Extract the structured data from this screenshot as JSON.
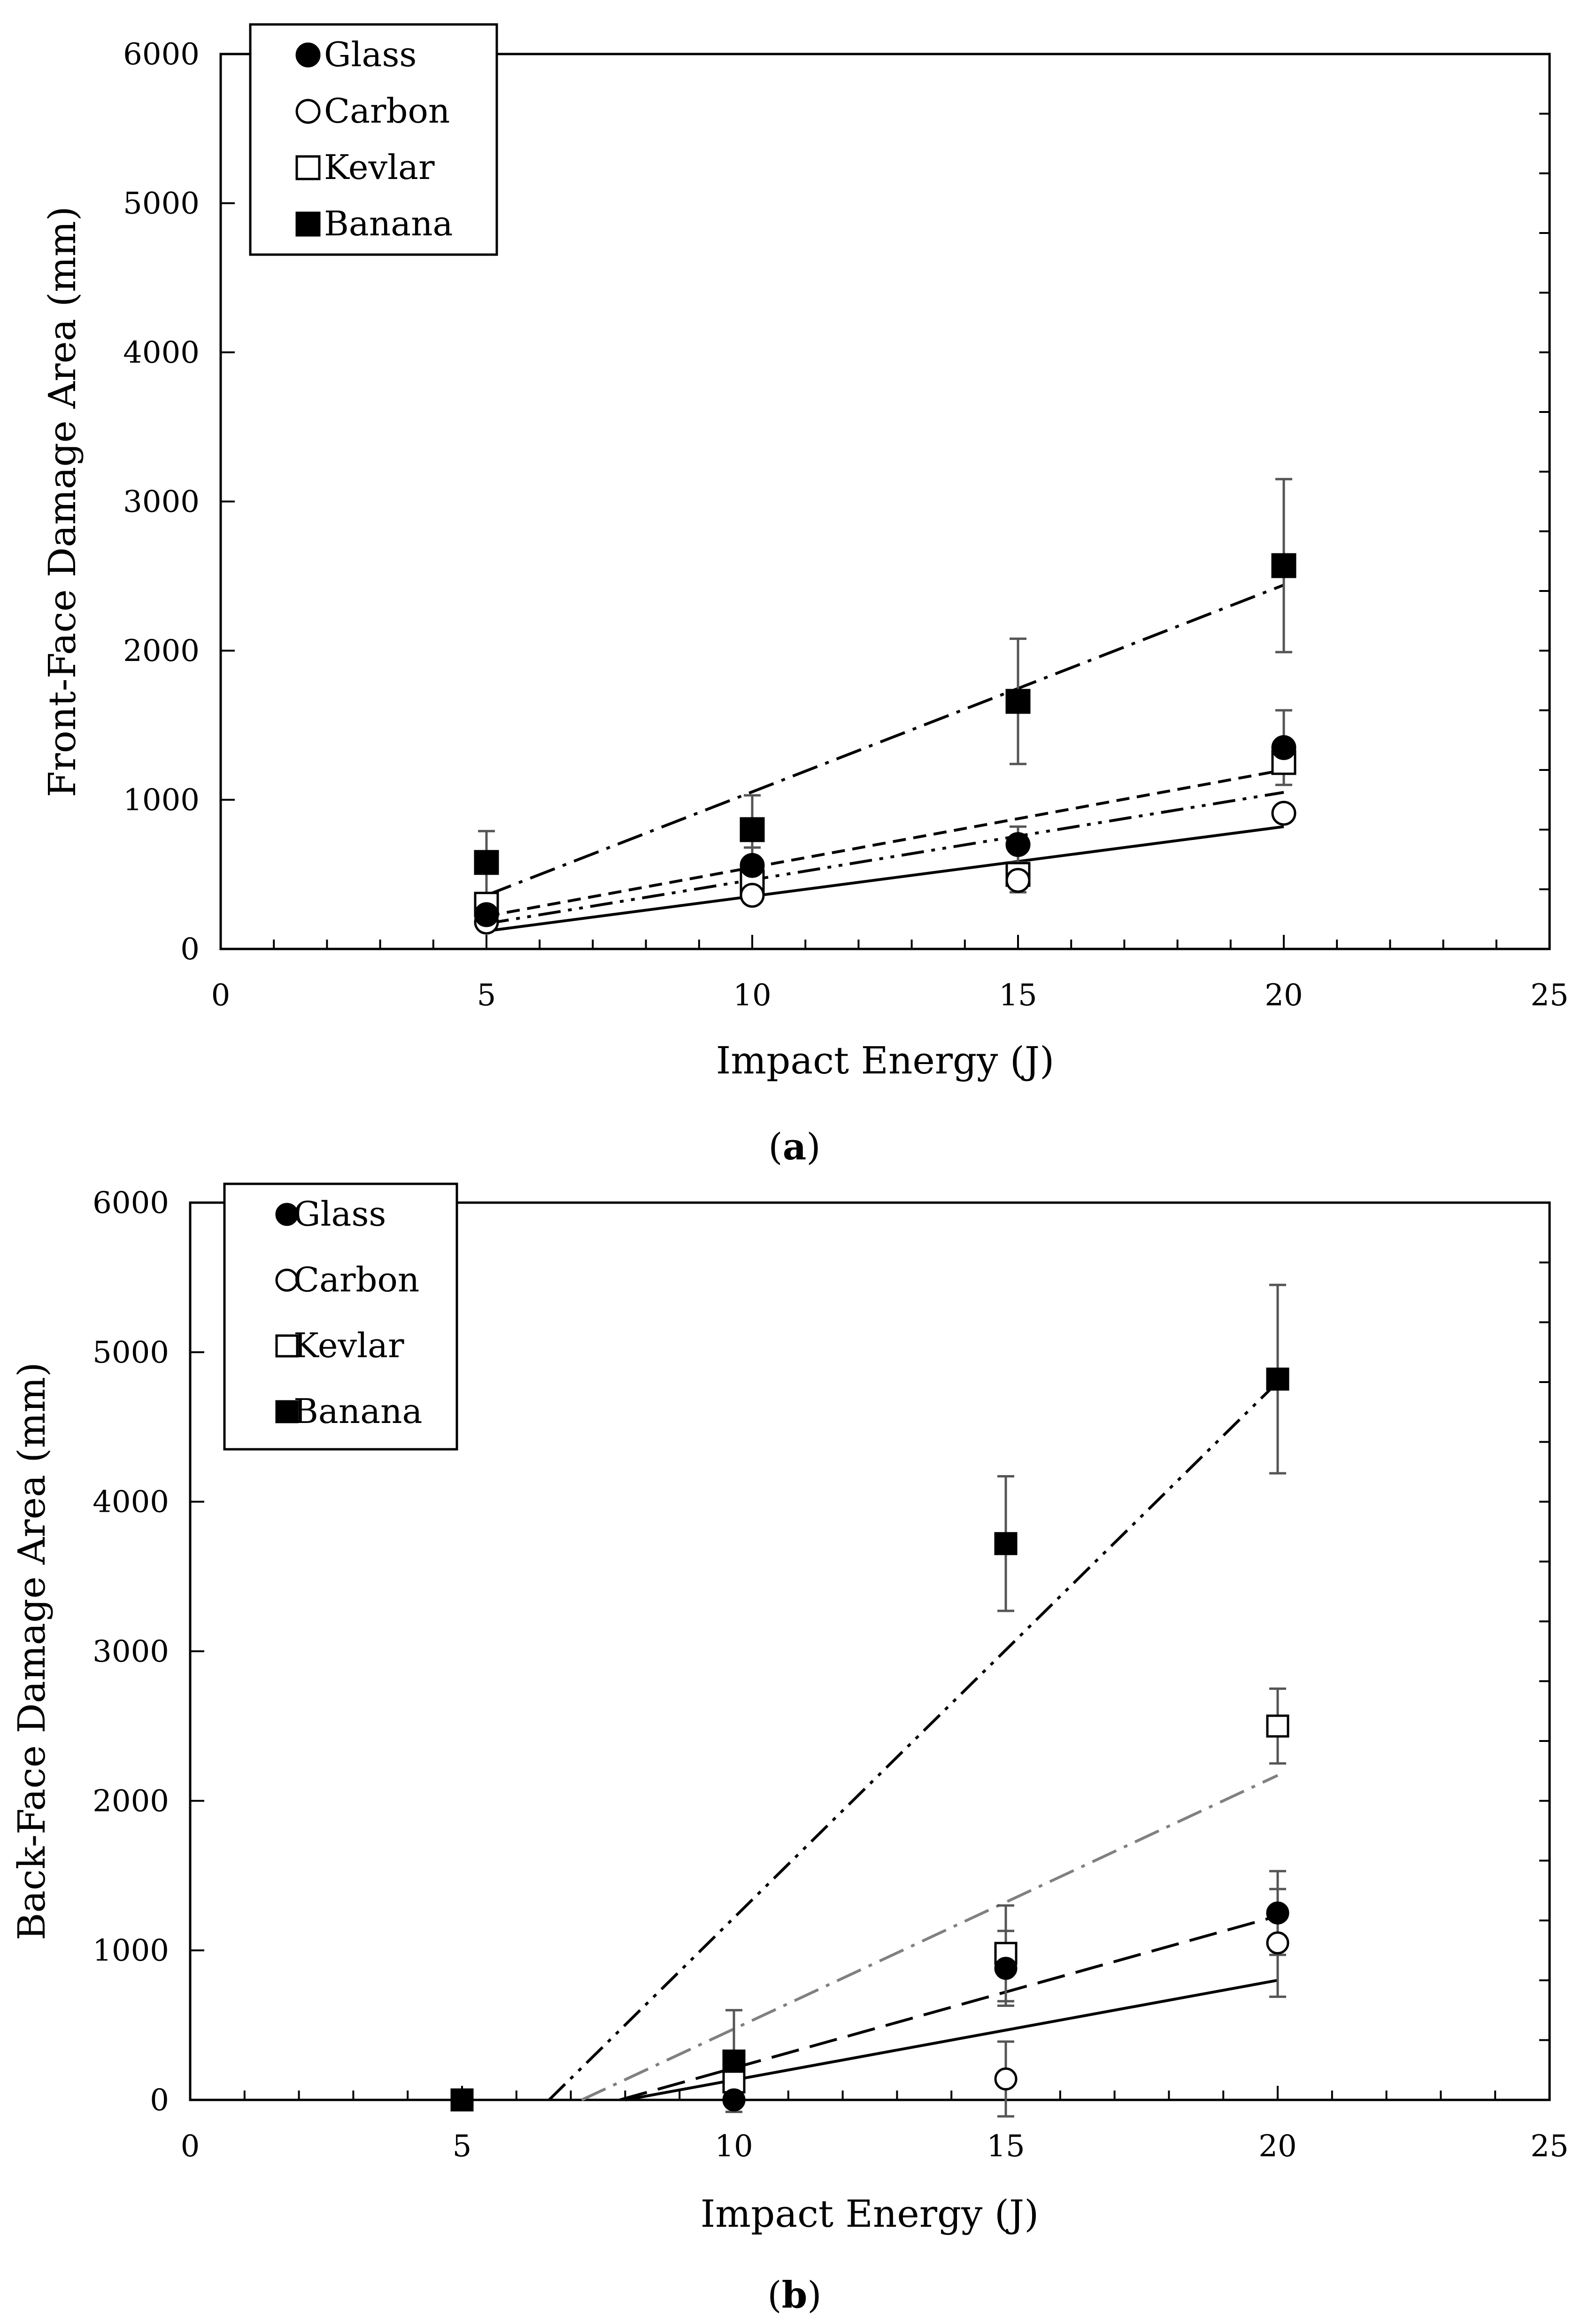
{
  "chart_data": [
    {
      "type": "scatter",
      "caption": "a",
      "xlabel": "Impact Energy (J)",
      "ylabel": "Front-Face Damage Area (mm)",
      "xlim": [
        0,
        25
      ],
      "ylim": [
        0,
        6000
      ],
      "xticks": [
        0,
        5,
        10,
        15,
        20,
        25
      ],
      "yticks": [
        0,
        1000,
        2000,
        3000,
        4000,
        5000,
        6000
      ],
      "x_minor_step": 1,
      "y_minor_step": 400,
      "legend_position": "top-left",
      "series": [
        {
          "name": "Glass",
          "marker": "filled-circle",
          "x": [
            5,
            10,
            15,
            20
          ],
          "y": [
            230,
            560,
            700,
            1350
          ],
          "err": [
            0,
            120,
            120,
            250
          ],
          "trend": {
            "x": [
              5,
              20
            ],
            "y": [
              170,
              1050
            ],
            "dash": "dash-dot-dot",
            "color": "#000000"
          }
        },
        {
          "name": "Carbon",
          "marker": "open-circle",
          "x": [
            5,
            10,
            15,
            20
          ],
          "y": [
            180,
            360,
            460,
            910
          ],
          "err": [
            0,
            0,
            80,
            0
          ],
          "trend": {
            "x": [
              5,
              20
            ],
            "y": [
              120,
              820
            ],
            "dash": "solid",
            "color": "#000000"
          }
        },
        {
          "name": "Kevlar",
          "marker": "open-square",
          "x": [
            5,
            10,
            15,
            20
          ],
          "y": [
            300,
            450,
            500,
            1250
          ],
          "err": [
            0,
            0,
            0,
            0
          ],
          "trend": {
            "x": [
              5,
              20
            ],
            "y": [
              220,
              1200
            ],
            "dash": "dash",
            "color": "#000000"
          }
        },
        {
          "name": "Banana",
          "marker": "filled-square",
          "x": [
            5,
            10,
            15,
            20
          ],
          "y": [
            580,
            800,
            1660,
            2570
          ],
          "err": [
            210,
            230,
            420,
            580
          ],
          "trend": {
            "x": [
              5,
              20
            ],
            "y": [
              360,
              2440
            ],
            "dash": "dash-dot",
            "color": "#000000"
          }
        }
      ]
    },
    {
      "type": "scatter",
      "caption": "b",
      "xlabel": "Impact Energy (J)",
      "ylabel": "Back-Face Damage Area (mm)",
      "xlim": [
        0,
        25
      ],
      "ylim": [
        0,
        6000
      ],
      "xticks": [
        0,
        5,
        10,
        15,
        20,
        25
      ],
      "yticks": [
        0,
        1000,
        2000,
        3000,
        4000,
        5000,
        6000
      ],
      "x_minor_step": 1,
      "y_minor_step": 400,
      "legend_position": "top-left",
      "series": [
        {
          "name": "Glass",
          "marker": "filled-circle",
          "x": [
            5,
            10,
            15,
            20
          ],
          "y": [
            0,
            0,
            880,
            1250
          ],
          "err": [
            0,
            0,
            250,
            280
          ],
          "trend": {
            "x": [
              7.9,
              20
            ],
            "y": [
              0,
              1230
            ],
            "dash": "long-dash",
            "color": "#000000"
          }
        },
        {
          "name": "Carbon",
          "marker": "open-circle",
          "x": [
            5,
            10,
            15,
            20
          ],
          "y": [
            0,
            0,
            140,
            1050
          ],
          "err": [
            0,
            0,
            250,
            360
          ],
          "trend": {
            "x": [
              8,
              20
            ],
            "y": [
              0,
              800
            ],
            "dash": "solid",
            "color": "#000000"
          }
        },
        {
          "name": "Kevlar",
          "marker": "open-square",
          "x": [
            5,
            10,
            15,
            20
          ],
          "y": [
            0,
            120,
            980,
            2500
          ],
          "err": [
            0,
            0,
            320,
            250
          ],
          "trend": {
            "x": [
              7.2,
              20
            ],
            "y": [
              0,
              2170
            ],
            "dash": "dash-dot",
            "color": "#808080"
          }
        },
        {
          "name": "Banana",
          "marker": "filled-square",
          "x": [
            5,
            10,
            15,
            20
          ],
          "y": [
            0,
            260,
            3720,
            4820
          ],
          "err": [
            0,
            340,
            450,
            630
          ],
          "trend": {
            "x": [
              6.6,
              20
            ],
            "y": [
              0,
              4800
            ],
            "dash": "dash-dot-dot",
            "color": "#000000"
          }
        }
      ]
    }
  ]
}
